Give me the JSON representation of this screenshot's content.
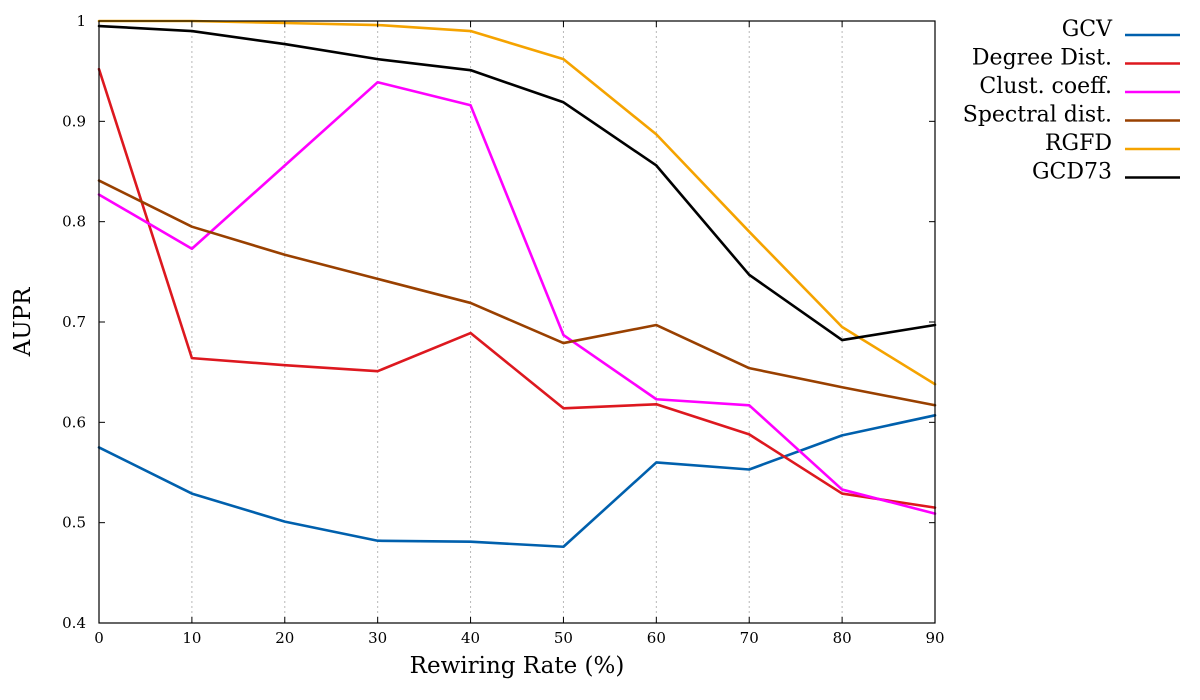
{
  "chart_data": {
    "type": "line",
    "title": "",
    "xlabel": "Rewiring Rate (%)",
    "ylabel": "AUPR",
    "x": [
      0,
      10,
      20,
      30,
      40,
      50,
      60,
      70,
      80,
      90
    ],
    "xlim": [
      0,
      90
    ],
    "ylim": [
      0.4,
      1.0
    ],
    "xticks": [
      "0",
      "10",
      "20",
      "30",
      "40",
      "50",
      "60",
      "70",
      "80",
      "90"
    ],
    "yticks": [
      "0.4",
      "0.5",
      "0.6",
      "0.7",
      "0.8",
      "0.9",
      "1"
    ],
    "grid": "vertical dotted lines at x ticks",
    "legend": "outside right, top",
    "series": [
      {
        "name": "GCV",
        "color": "#0060ad",
        "values": [
          0.575,
          0.529,
          0.501,
          0.482,
          0.481,
          0.476,
          0.56,
          0.553,
          0.587,
          0.607
        ]
      },
      {
        "name": "Degree Dist.",
        "color": "#dd181f",
        "values": [
          0.952,
          0.664,
          0.657,
          0.651,
          0.689,
          0.614,
          0.618,
          0.588,
          0.529,
          0.515
        ]
      },
      {
        "name": "Clust. coeff.",
        "color": "#ff00ff",
        "values": [
          0.827,
          0.773,
          0.856,
          0.939,
          0.916,
          0.687,
          0.623,
          0.617,
          0.533,
          0.509
        ]
      },
      {
        "name": "Spectral dist.",
        "color": "#994000",
        "values": [
          0.841,
          0.795,
          0.767,
          0.743,
          0.719,
          0.679,
          0.697,
          0.654,
          0.635,
          0.617
        ]
      },
      {
        "name": "RGFD",
        "color": "#f5a300",
        "values": [
          1.0,
          1.0,
          0.998,
          0.996,
          0.99,
          0.962,
          0.887,
          0.79,
          0.695,
          0.638
        ]
      },
      {
        "name": "GCD73",
        "color": "#000000",
        "values": [
          0.995,
          0.99,
          0.977,
          0.962,
          0.951,
          0.919,
          0.856,
          0.747,
          0.682,
          0.697
        ]
      }
    ]
  }
}
